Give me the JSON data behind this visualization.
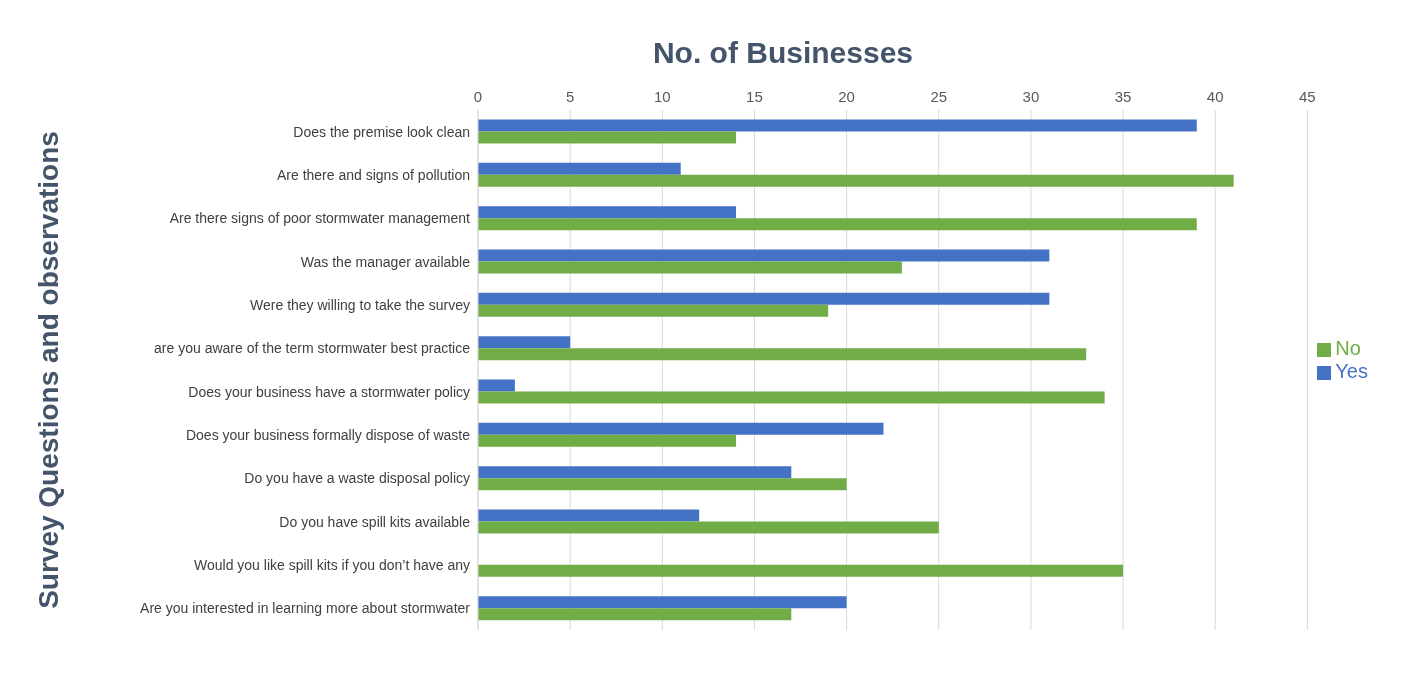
{
  "chart_data": {
    "type": "bar",
    "orientation": "horizontal",
    "title": "No. of Businesses",
    "ylabel": "Survey Questions and observations",
    "categories": [
      "Does the premise look clean",
      "Are there and signs of pollution",
      "Are there signs of poor stormwater management",
      "Was the manager available",
      "Were they willing to take the survey",
      "are you aware of the term stormwater best practice",
      "Does your business have a stormwater policy",
      "Does your business formally dispose of waste",
      "Do you have a waste disposal policy",
      "Do you have spill kits available",
      "Would you like spill kits if you don’t have any",
      "Are you interested in learning more about stormwater"
    ],
    "series": [
      {
        "name": "Yes",
        "color": "#4472c4",
        "values": [
          39,
          11,
          14,
          31,
          31,
          5,
          2,
          22,
          17,
          12,
          0,
          20
        ]
      },
      {
        "name": "No",
        "color": "#70ad47",
        "values": [
          14,
          41,
          39,
          23,
          19,
          33,
          34,
          14,
          20,
          25,
          35,
          17
        ]
      }
    ],
    "xlim": [
      0,
      45
    ],
    "xticks": [
      0,
      5,
      10,
      15,
      20,
      25,
      30,
      35,
      40,
      45
    ],
    "grid": "x",
    "legend": "right"
  }
}
